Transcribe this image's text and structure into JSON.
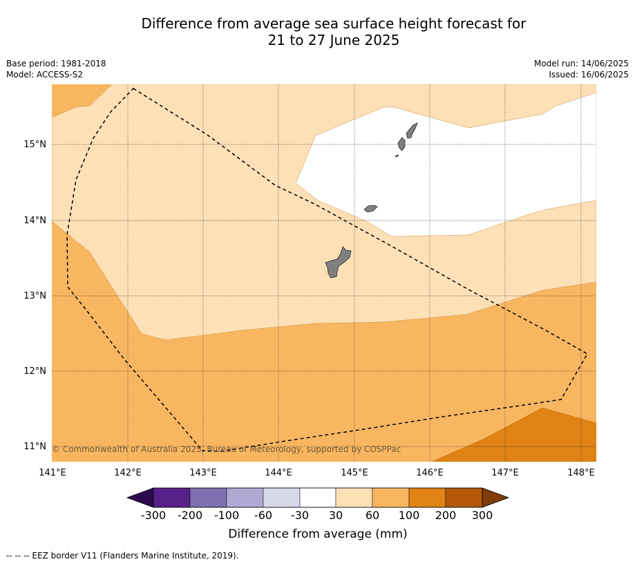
{
  "title_line1": "Difference from average sea surface height forecast for",
  "title_line2": "21 to 27 June 2025",
  "base_period": "Base period: 1981-2018",
  "model": "Model: ACCESS-S2",
  "model_run": "Model run: 14/06/2025",
  "issued": "Issued: 16/06/2025",
  "copyright": "© Commonwealth of Australia 2025, Bureau of Meteorology, supported by COSPPac",
  "footnote": "--  --  -- EEZ border V11 (Flanders Marine Institute, 2019).",
  "x_ticks": [
    "141°E",
    "142°E",
    "143°E",
    "144°E",
    "145°E",
    "146°E",
    "147°E",
    "148°E"
  ],
  "y_ticks": [
    "15°N",
    "14°N",
    "13°N",
    "12°N",
    "11°N"
  ],
  "colorbar": {
    "title": "Difference from average (mm)",
    "tick_labels": [
      "-300",
      "-200",
      "-100",
      "-60",
      "-30",
      "30",
      "60",
      "100",
      "200",
      "300"
    ],
    "colors": [
      "#2d0a4e",
      "#58218a",
      "#7f70b2",
      "#b0a9d4",
      "#d9d9ec",
      "#ffffff",
      "#fde0b6",
      "#f9b660",
      "#e08214",
      "#b35806",
      "#7f3b08"
    ]
  },
  "map": {
    "colors": {
      "band_30_60": "#fde0b6",
      "band_60_100": "#f9b660",
      "band_100_200": "#e08214",
      "land": "#808080"
    }
  }
}
